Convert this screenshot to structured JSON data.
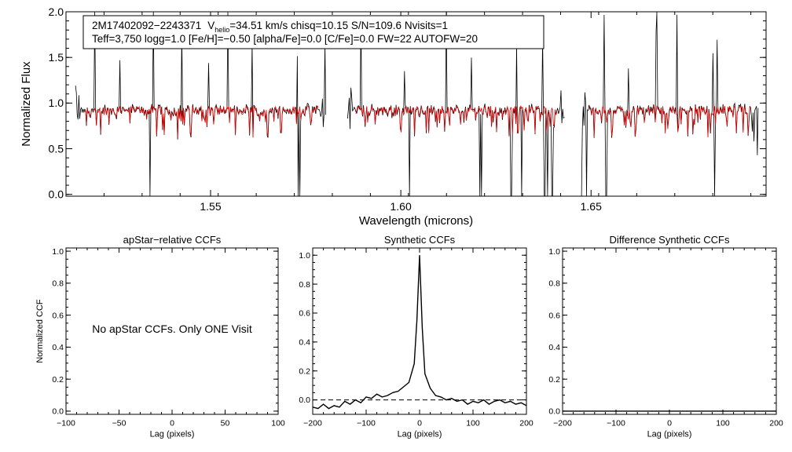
{
  "colors": {
    "observed": "#000000",
    "model": "#e00000",
    "axis": "#000000"
  },
  "header": {
    "line1_id": "2M17402092−2243371",
    "line1_v": "V",
    "line1_vsub": "helio",
    "line1_rest": "=34.51 km/s  chisq=10.15  S/N=109.6  Nvisits=1",
    "line2": "Teff=3,750 logg=1.0 [Fe/H]=−0.50 [alpha/Fe]=0.0 [C/Fe]=0.0 FW=22 AUTOFW=20"
  },
  "chart_data": [
    {
      "type": "line",
      "id": "spectrum",
      "xlabel": "Wavelength (microns)",
      "ylabel": "Normalized Flux",
      "xlim": [
        1.512,
        1.696
      ],
      "ylim": [
        -0.02,
        2.0
      ],
      "xticks": [
        1.55,
        1.6,
        1.65
      ],
      "xtick_labels": [
        "1.55",
        "1.60",
        "1.65"
      ],
      "yticks": [
        0.0,
        0.5,
        1.0,
        1.5,
        2.0
      ],
      "ytick_labels": [
        "0.0",
        "0.5",
        "1.0",
        "1.5",
        "2.0"
      ],
      "detector_ranges": [
        [
          1.5145,
          1.5805
        ],
        [
          1.586,
          1.6432
        ],
        [
          1.6475,
          1.694
        ]
      ],
      "continuum": 0.92,
      "spikes_up": [
        1.5195,
        1.5262,
        1.535,
        1.5425,
        1.5495,
        1.5545,
        1.561,
        1.5728,
        1.58,
        1.5895,
        1.601,
        1.612,
        1.6185,
        1.6305,
        1.6372,
        1.6448,
        1.6535,
        1.6598,
        1.6672,
        1.6725,
        1.682,
        1.6832
      ],
      "spikes_down": [
        1.534,
        1.573,
        1.5735,
        1.6022,
        1.6208,
        1.6212,
        1.629,
        1.6318,
        1.6378,
        1.6385,
        1.6398,
        1.6475,
        1.6488,
        1.654,
        1.6825
      ],
      "series": [
        {
          "name": "observed",
          "color": "#000000",
          "description": "apStar spectrum"
        },
        {
          "name": "model",
          "color": "#e00000",
          "description": "synthetic best fit"
        }
      ]
    },
    {
      "type": "line",
      "id": "apstar-ccf",
      "title": "apStar−relative CCFs",
      "xlabel": "Lag (pixels)",
      "ylabel": "Normalized CCF",
      "xlim": [
        -100,
        100
      ],
      "ylim": [
        -0.02,
        1.02
      ],
      "xticks": [
        -100,
        -50,
        0,
        50,
        100
      ],
      "xtick_labels": [
        "−100",
        "−50",
        "0",
        "50",
        "100"
      ],
      "yticks": [
        0.0,
        0.2,
        0.4,
        0.6,
        0.8,
        1.0
      ],
      "ytick_labels": [
        "0.0",
        "0.2",
        "0.4",
        "0.6",
        "0.8",
        "1.0"
      ],
      "annotation": "No apStar CCFs.  Only ONE Visit",
      "series": []
    },
    {
      "type": "line",
      "id": "synthetic-ccf",
      "title": "Synthetic CCFs",
      "xlabel": "Lag (pixels)",
      "ylabel": "",
      "xlim": [
        -200,
        200
      ],
      "ylim": [
        -0.1,
        1.05
      ],
      "xticks": [
        -200,
        -100,
        0,
        100,
        200
      ],
      "xtick_labels": [
        "−200",
        "−100",
        "0",
        "100",
        "200"
      ],
      "yticks": [
        0.0,
        0.2,
        0.4,
        0.6,
        0.8,
        1.0
      ],
      "ytick_labels": [
        "0.0",
        "0.2",
        "0.4",
        "0.6",
        "0.8",
        "1.0"
      ],
      "zero_line": 0.0,
      "series": [
        {
          "name": "ccf",
          "x": [
            -200,
            -190,
            -180,
            -170,
            -160,
            -150,
            -140,
            -130,
            -120,
            -110,
            -100,
            -90,
            -80,
            -70,
            -60,
            -50,
            -40,
            -30,
            -20,
            -10,
            -5,
            0,
            5,
            10,
            20,
            30,
            40,
            50,
            60,
            70,
            80,
            90,
            100,
            110,
            120,
            130,
            140,
            150,
            160,
            170,
            180,
            190,
            200
          ],
          "y": [
            -0.05,
            -0.06,
            -0.03,
            -0.06,
            -0.04,
            -0.05,
            -0.01,
            -0.03,
            0.0,
            -0.02,
            0.02,
            0.01,
            0.04,
            0.02,
            0.03,
            0.05,
            0.06,
            0.09,
            0.12,
            0.25,
            0.55,
            1.0,
            0.5,
            0.18,
            0.08,
            0.03,
            0.02,
            0.0,
            0.01,
            -0.01,
            0.0,
            -0.03,
            -0.01,
            -0.02,
            0.0,
            -0.03,
            -0.01,
            0.0,
            -0.02,
            -0.01,
            -0.03,
            -0.02,
            -0.04
          ]
        }
      ]
    },
    {
      "type": "line",
      "id": "difference-ccf",
      "title": "Difference Synthetic CCFs",
      "xlabel": "Lag (pixels)",
      "ylabel": "",
      "xlim": [
        -200,
        200
      ],
      "ylim": [
        -0.02,
        1.02
      ],
      "xticks": [
        -200,
        -100,
        0,
        100,
        200
      ],
      "xtick_labels": [
        "−200",
        "−100",
        "0",
        "100",
        "200"
      ],
      "yticks": [
        0.0,
        0.2,
        0.4,
        0.6,
        0.8,
        1.0
      ],
      "ytick_labels": [
        "0.0",
        "0.2",
        "0.4",
        "0.6",
        "0.8",
        "1.0"
      ],
      "series": [
        {
          "name": "difference",
          "x": [
            -200,
            200
          ],
          "y": [
            0.0,
            0.0
          ]
        }
      ]
    }
  ]
}
